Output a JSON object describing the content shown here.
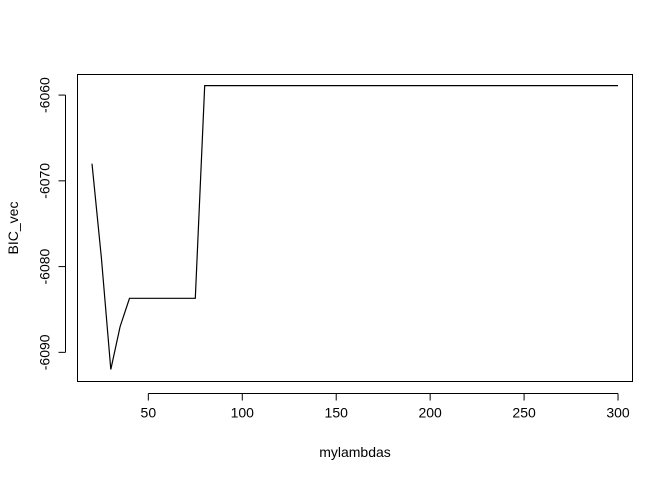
{
  "chart_data": {
    "type": "line",
    "xlabel": "mylambdas",
    "ylabel": "BIC_vec",
    "x_ticks": [
      50,
      100,
      150,
      200,
      250,
      300
    ],
    "x_tick_labels": [
      "50",
      "100",
      "150",
      "200",
      "250",
      "300"
    ],
    "y_ticks": [
      -6060,
      -6070,
      -6080,
      -6090
    ],
    "y_tick_labels": [
      "-6060",
      "-6070",
      "-6080",
      "-6090"
    ],
    "xlim": [
      12.3,
      307.7
    ],
    "ylim": [
      -6093.4,
      -6057.6
    ],
    "grid": false,
    "series": [
      {
        "x": [
          20,
          25,
          30,
          35,
          40,
          45,
          50,
          55,
          60,
          65,
          70,
          75,
          80,
          85,
          90,
          95,
          100,
          150,
          200,
          250,
          300
        ],
        "values": [
          -6068,
          -6079,
          -6092,
          -6087,
          -6083.7,
          -6083.7,
          -6083.7,
          -6083.7,
          -6083.7,
          -6083.7,
          -6083.7,
          -6083.7,
          -6058.9,
          -6058.9,
          -6058.9,
          -6058.9,
          -6058.9,
          -6058.9,
          -6058.9,
          -6058.9,
          -6058.9
        ]
      }
    ]
  }
}
